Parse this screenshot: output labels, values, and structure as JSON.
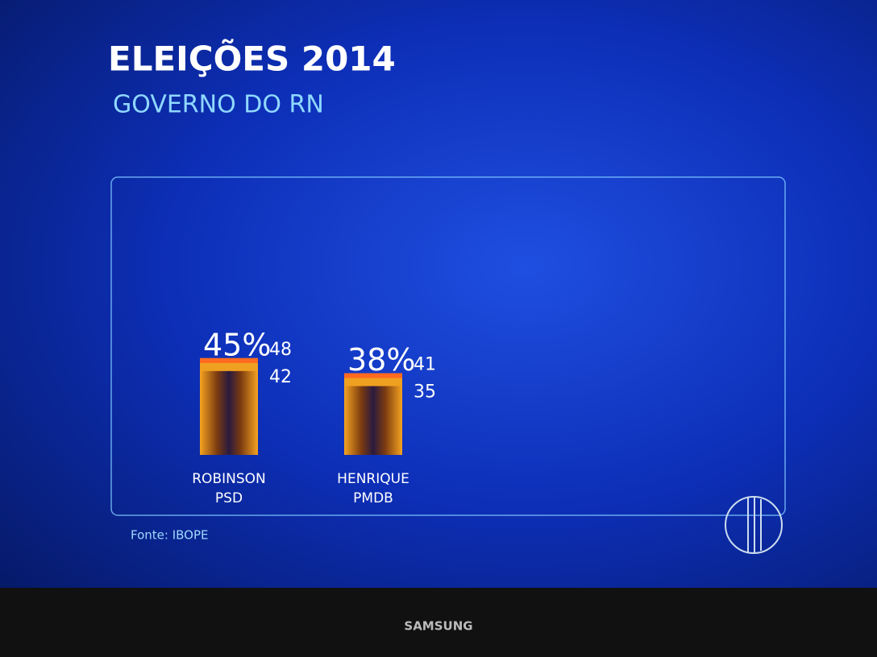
{
  "chart_data": {
    "type": "bar",
    "title": "ELEIÇÕES 2014",
    "subtitle": "GOVERNO DO RN",
    "categories": [
      "ROBINSON",
      "HENRIQUE"
    ],
    "parties": [
      "PSD",
      "PMDB"
    ],
    "values": [
      45,
      38
    ],
    "value_labels": [
      "45%",
      "38%"
    ],
    "upper": [
      48,
      41
    ],
    "lower": [
      42,
      35
    ],
    "color": "#f0a020",
    "source": "Fonte: IBOPE"
  },
  "screen": {
    "brand": "SAMSUNG"
  }
}
